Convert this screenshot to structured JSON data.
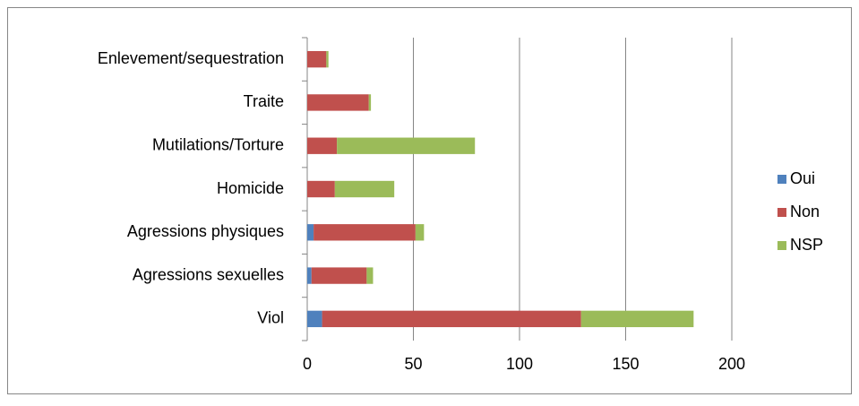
{
  "chart_data": {
    "type": "bar",
    "orientation": "horizontal",
    "stacked": true,
    "categories": [
      "Viol",
      "Agressions sexuelles",
      "Agressions physiques",
      "Homicide",
      "Mutilations/Torture",
      "Traite",
      "Enlevement/sequestration"
    ],
    "series": [
      {
        "name": "Oui",
        "color": "#4f81bd",
        "values": [
          7,
          2,
          3,
          0,
          0,
          0,
          0
        ]
      },
      {
        "name": "Non",
        "color": "#c0504d",
        "values": [
          122,
          26,
          48,
          13,
          14,
          29,
          9
        ]
      },
      {
        "name": "NSP",
        "color": "#9bbb59",
        "values": [
          53,
          3,
          4,
          28,
          65,
          1,
          1
        ]
      }
    ],
    "xlim": [
      0,
      200
    ],
    "xticks": [
      0,
      50,
      100,
      150,
      200
    ],
    "grid": true,
    "legend": "right"
  }
}
